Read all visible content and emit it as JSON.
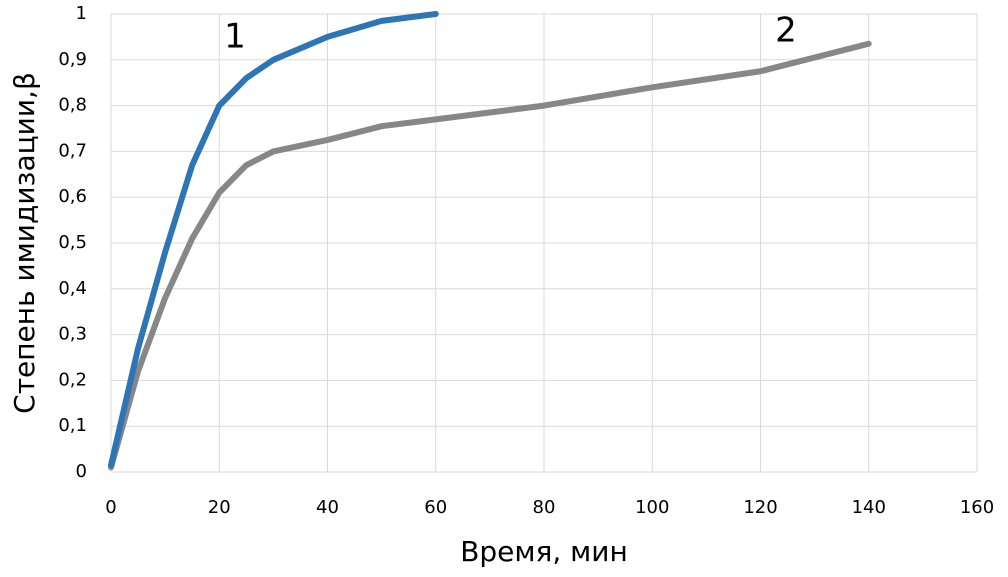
{
  "chart_data": {
    "type": "line",
    "xlabel": "Время, мин",
    "ylabel": "Степень имидизации,β",
    "annotations": [
      "1",
      "2"
    ],
    "xlim": [
      0,
      160
    ],
    "xticks": [
      0,
      20,
      40,
      60,
      80,
      100,
      120,
      140,
      160
    ],
    "ylim": [
      0,
      1
    ],
    "yticks": [
      0,
      {
        "value": 0.1,
        "label": "0,1"
      },
      {
        "value": 0.2,
        "label": "0,2"
      },
      {
        "value": 0.3,
        "label": "0,3"
      },
      {
        "value": 0.4,
        "label": "0,4"
      },
      {
        "value": 0.5,
        "label": "0,5"
      },
      {
        "value": 0.6,
        "label": "0,6"
      },
      {
        "value": 0.7,
        "label": "0,7"
      },
      {
        "value": 0.8,
        "label": "0,8"
      },
      {
        "value": 0.9,
        "label": "0,9"
      },
      1
    ],
    "grid": true,
    "series": [
      {
        "color": "#2e75b6",
        "x": [
          0,
          5,
          10,
          15,
          20,
          25,
          30,
          40,
          50,
          60
        ],
        "values": [
          0.015,
          0.27,
          0.48,
          0.67,
          0.8,
          0.86,
          0.9,
          0.95,
          0.985,
          1.0
        ]
      },
      {
        "color": "#878787",
        "x": [
          0,
          5,
          10,
          15,
          20,
          25,
          30,
          40,
          50,
          60,
          80,
          100,
          120,
          140
        ],
        "values": [
          0.01,
          0.22,
          0.38,
          0.51,
          0.61,
          0.67,
          0.7,
          0.725,
          0.755,
          0.77,
          0.8,
          0.84,
          0.875,
          0.935
        ]
      }
    ]
  }
}
